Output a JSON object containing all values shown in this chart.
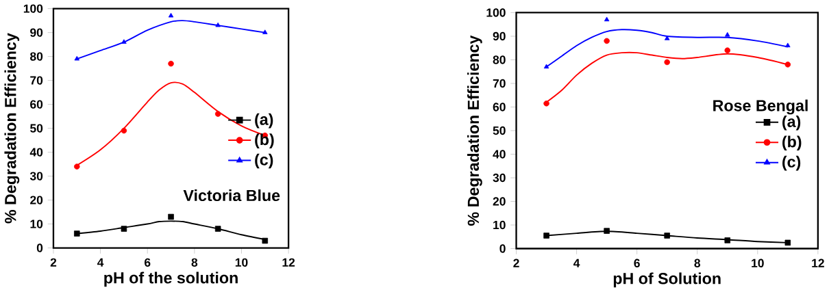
{
  "chart_data": [
    {
      "type": "scatter",
      "xlabel": "pH of the solution",
      "ylabel": "% Degradation Efficiency",
      "x": [
        3,
        5,
        7,
        9,
        11
      ],
      "xlim": [
        2,
        12
      ],
      "xticks": [
        2,
        4,
        6,
        8,
        10,
        12
      ],
      "ylim": [
        0,
        100
      ],
      "yticks": [
        0,
        10,
        20,
        30,
        40,
        50,
        60,
        70,
        80,
        90,
        100
      ],
      "grid": false,
      "legend": "right",
      "annotations": [
        "Victoria Blue"
      ],
      "series": [
        {
          "name": "(a)",
          "color": "#000000",
          "marker": "square",
          "values": [
            6,
            8,
            13,
            8,
            3
          ]
        },
        {
          "name": "(b)",
          "color": "#ff0000",
          "marker": "circle",
          "values": [
            34,
            49,
            77,
            56,
            47
          ]
        },
        {
          "name": "(c)",
          "color": "#0000ff",
          "marker": "triangle",
          "values": [
            79,
            86,
            97,
            93,
            90
          ]
        },
        {
          "type": "line",
          "color": "#000000",
          "x": [
            3,
            4,
            5,
            6,
            6.5,
            7,
            7.5,
            8,
            9,
            10,
            11
          ],
          "values": [
            6,
            7,
            8.5,
            10,
            11,
            11.2,
            11,
            10,
            8,
            5.5,
            3.5
          ]
        },
        {
          "type": "line",
          "color": "#ff0000",
          "x": [
            3,
            4,
            5,
            6,
            6.5,
            7,
            7.5,
            8,
            9,
            10,
            11
          ],
          "values": [
            34.5,
            41,
            50,
            61,
            66,
            69,
            68.5,
            65,
            57,
            51,
            47
          ]
        },
        {
          "type": "line",
          "color": "#0000ff",
          "x": [
            3,
            4,
            5,
            6,
            7,
            7.5,
            8,
            9,
            10,
            11
          ],
          "values": [
            79,
            82.5,
            86,
            91,
            94.5,
            95,
            94.5,
            93,
            91.5,
            90
          ]
        }
      ]
    },
    {
      "type": "scatter",
      "xlabel": "pH of Solution",
      "ylabel": "% Degradation Efficiency",
      "legend_title": "Rose Bengal",
      "x": [
        3,
        5,
        7,
        9,
        11
      ],
      "xlim": [
        2,
        12
      ],
      "xticks": [
        2,
        4,
        6,
        8,
        10,
        12
      ],
      "ylim": [
        0,
        100
      ],
      "yticks": [
        0,
        10,
        20,
        30,
        40,
        50,
        60,
        70,
        80,
        90,
        100
      ],
      "grid": false,
      "legend": "right",
      "series": [
        {
          "name": "(a)",
          "color": "#000000",
          "marker": "square",
          "values": [
            5.5,
            7.5,
            5.5,
            3.5,
            2.5
          ]
        },
        {
          "name": "(b)",
          "color": "#ff0000",
          "marker": "circle",
          "values": [
            61.5,
            88,
            79,
            84,
            78
          ]
        },
        {
          "name": "(c)",
          "color": "#0000ff",
          "marker": "triangle",
          "values": [
            77,
            97,
            89,
            90.5,
            86
          ]
        },
        {
          "type": "line",
          "color": "#000000",
          "x": [
            3,
            4,
            5,
            6,
            7,
            8,
            9,
            10,
            11
          ],
          "values": [
            5.5,
            6.5,
            7.3,
            6.5,
            5.5,
            4.5,
            3.8,
            3,
            2.5
          ]
        },
        {
          "type": "line",
          "color": "#ff0000",
          "x": [
            3,
            3.5,
            4,
            4.5,
            5,
            5.5,
            6,
            6.5,
            7,
            7.5,
            8,
            9,
            10,
            11
          ],
          "values": [
            62,
            67,
            73.5,
            78.5,
            82,
            83,
            83,
            82,
            81,
            80.5,
            81,
            82.5,
            81,
            78
          ]
        },
        {
          "type": "line",
          "color": "#0000ff",
          "x": [
            3,
            3.5,
            4,
            4.5,
            5,
            5.5,
            6,
            6.5,
            7,
            8,
            9,
            10,
            11
          ],
          "values": [
            77,
            81.5,
            86,
            89.5,
            92,
            92.8,
            92.5,
            91.5,
            90,
            89.5,
            89.5,
            88,
            85.5
          ]
        }
      ]
    }
  ]
}
